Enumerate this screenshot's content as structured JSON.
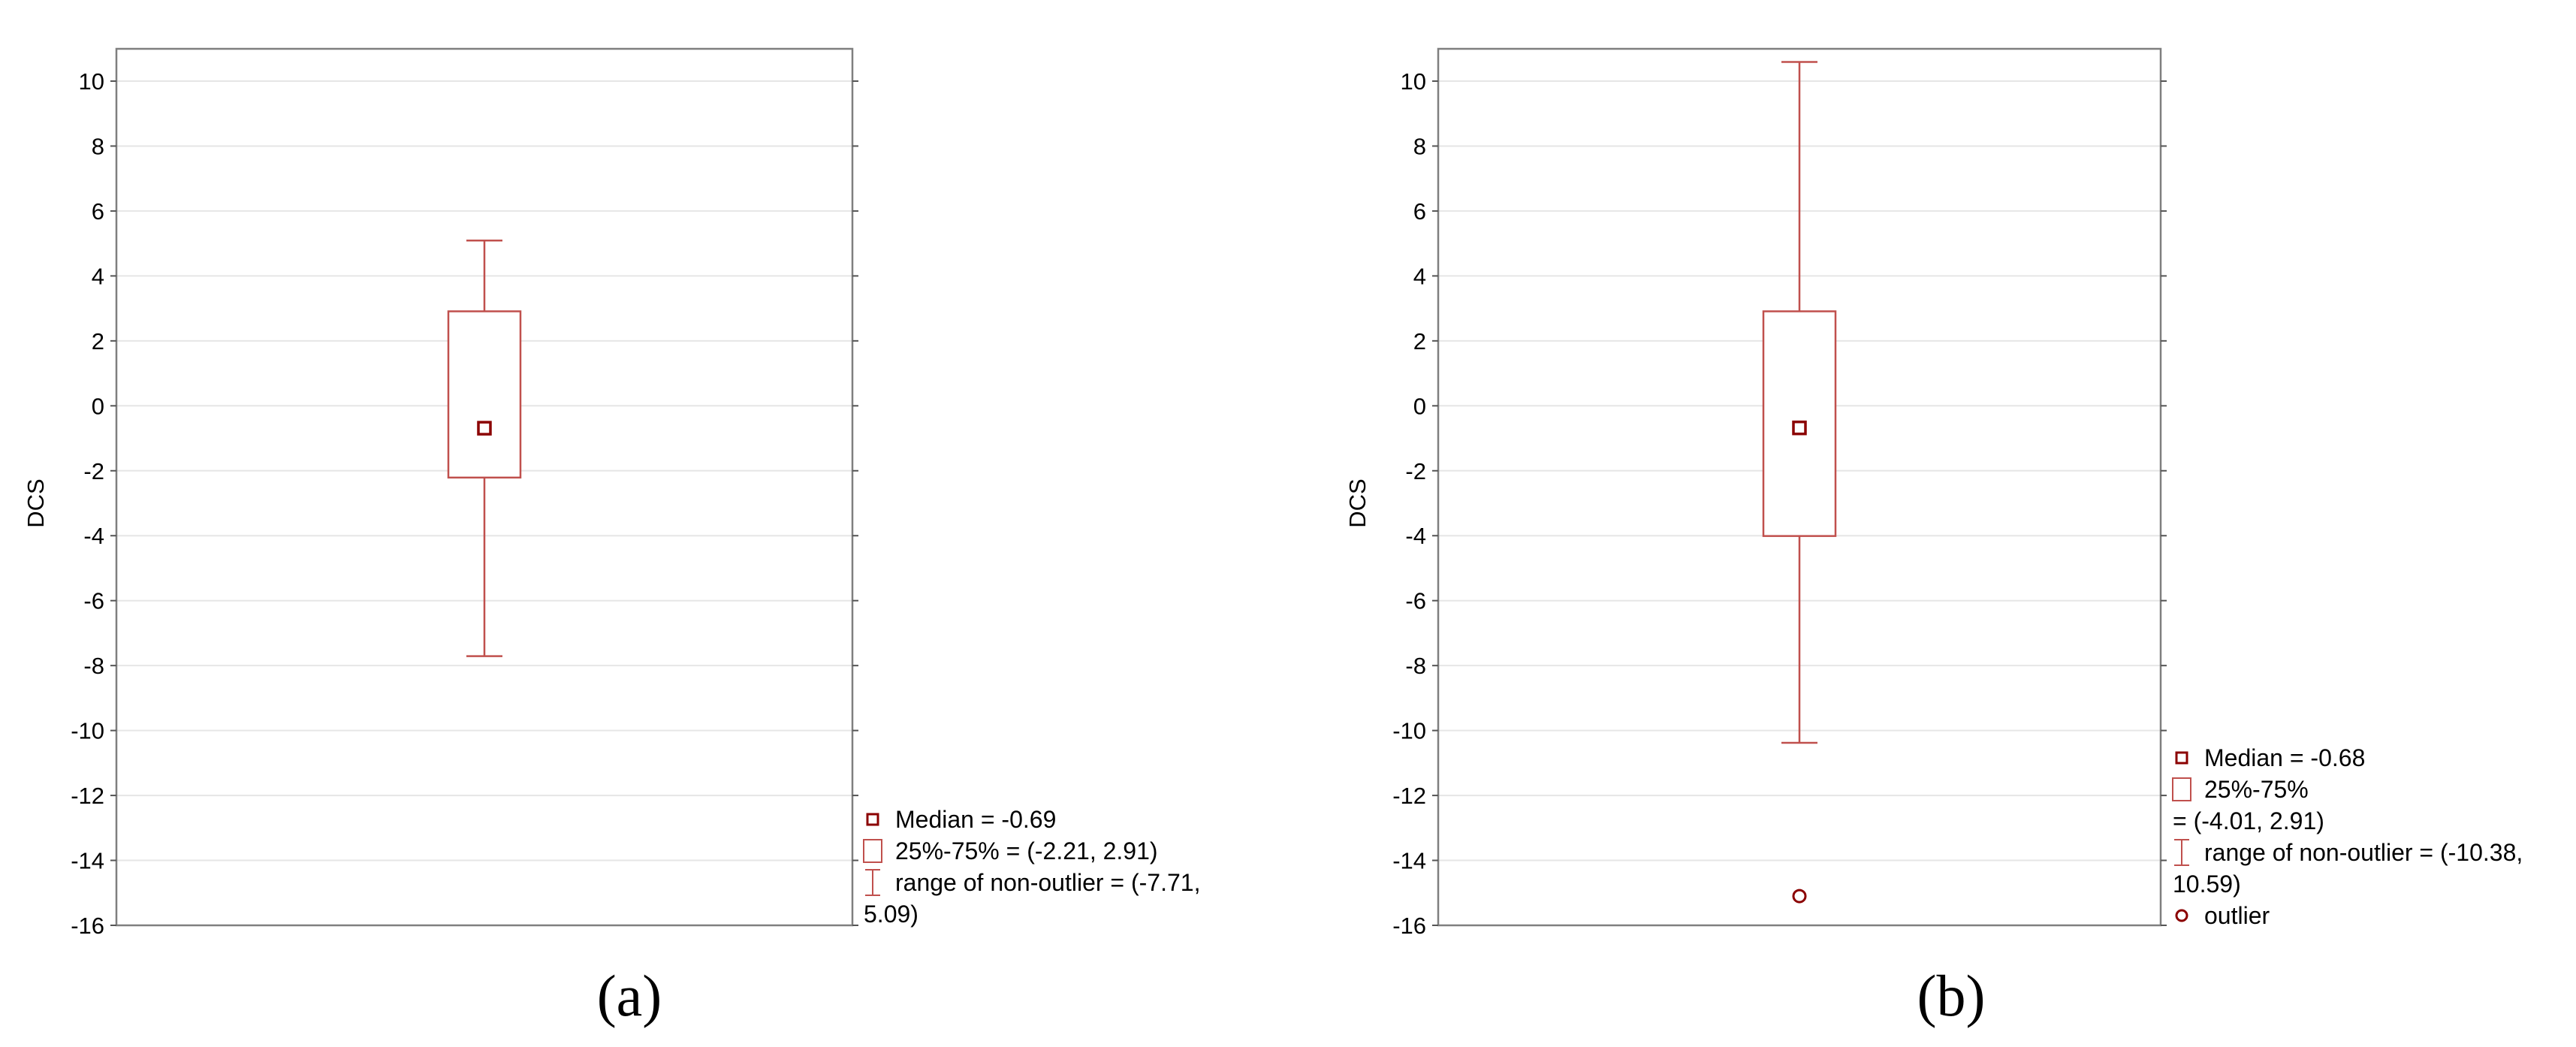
{
  "chart_data": [
    {
      "type": "boxplot",
      "panel_label": "(a)",
      "ylabel": "DCS",
      "ylim": [
        -16,
        10.8
      ],
      "yticks": [
        10,
        8,
        6,
        4,
        2,
        0,
        -2,
        -4,
        -6,
        -8,
        -10,
        -12,
        -14,
        -16
      ],
      "grid": true,
      "median": -0.69,
      "q1": -2.21,
      "q3": 2.91,
      "whisker_low": -7.71,
      "whisker_high": 5.09,
      "outliers": [],
      "legend_position": "outside-bottom-right",
      "legend": [
        {
          "kind": "median",
          "lines": [
            "Median = -0.69"
          ]
        },
        {
          "kind": "box",
          "lines": [
            "25%-75% = (-2.21, 2.91)"
          ]
        },
        {
          "kind": "range",
          "lines": [
            "range of non-outlier = (-7.71,",
            "5.09)"
          ]
        }
      ]
    },
    {
      "type": "boxplot",
      "panel_label": "(b)",
      "ylabel": "DCS",
      "ylim": [
        -16,
        10.8
      ],
      "yticks": [
        10,
        8,
        6,
        4,
        2,
        0,
        -2,
        -4,
        -6,
        -8,
        -10,
        -12,
        -14,
        -16
      ],
      "grid": true,
      "median": -0.68,
      "q1": -4.01,
      "q3": 2.91,
      "whisker_low": -10.38,
      "whisker_high": 10.59,
      "outliers": [
        -15.1
      ],
      "legend_position": "outside-bottom-right",
      "legend": [
        {
          "kind": "median",
          "lines": [
            "Median = -0.68"
          ]
        },
        {
          "kind": "box",
          "lines": [
            "25%-75%",
            "= (-4.01, 2.91)"
          ]
        },
        {
          "kind": "range",
          "lines": [
            "range of non-outlier = (-10.38,",
            "10.59)"
          ]
        },
        {
          "kind": "outlier",
          "lines": [
            "outlier"
          ]
        }
      ]
    }
  ],
  "colors": {
    "box": "#c0504d",
    "median": "#8b0000",
    "grid": "#e6e6e6",
    "frame": "#7f7f7f"
  }
}
